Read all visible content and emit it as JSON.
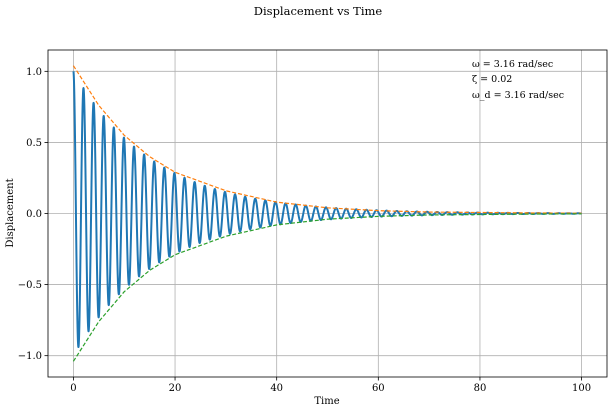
{
  "chart_data": {
    "type": "line",
    "title": "Displacement vs Time",
    "xlabel": "Time",
    "ylabel": "Displacement",
    "xlim": [
      -5,
      105
    ],
    "ylim": [
      -1.15,
      1.15
    ],
    "x_ticks": [
      0,
      20,
      40,
      60,
      80,
      100
    ],
    "x_tick_labels": [
      "0",
      "20",
      "40",
      "60",
      "80",
      "100"
    ],
    "y_ticks": [
      -1.0,
      -0.5,
      0.0,
      0.5,
      1.0
    ],
    "y_tick_labels": [
      "−1.0",
      "−0.5",
      "0.0",
      "0.5",
      "1.0"
    ],
    "grid": true,
    "annotations": [
      "ω = 3.16 rad/sec",
      "ζ = 0.02",
      "ω_d = 3.16 rad/sec"
    ],
    "series": [
      {
        "color": "#1f77b4",
        "line": "solid",
        "model": "damped_cosine",
        "params": {
          "amplitude": 1.0,
          "zeta": 0.02,
          "omega": 3.16,
          "omega_d": 3.16
        },
        "x": [
          0,
          2,
          5,
          10,
          15,
          20,
          30,
          40,
          50,
          60,
          70,
          80,
          90,
          100
        ],
        "envelope": [
          1.0,
          0.881,
          0.729,
          0.531,
          0.387,
          0.282,
          0.15,
          0.08,
          0.042,
          0.023,
          0.012,
          0.006,
          0.003,
          0.002
        ]
      },
      {
        "color": "#ff7f0e",
        "line": "dashed",
        "x": [
          0,
          5,
          10,
          15,
          20,
          30,
          40,
          50,
          60,
          70,
          80,
          90,
          100
        ],
        "y": [
          1.04,
          0.76,
          0.55,
          0.4,
          0.29,
          0.16,
          0.08,
          0.04,
          0.02,
          0.01,
          0.007,
          0.004,
          0.002
        ]
      },
      {
        "color": "#2ca02c",
        "line": "dashed",
        "x": [
          0,
          5,
          10,
          15,
          20,
          30,
          40,
          50,
          60,
          70,
          80,
          90,
          100
        ],
        "y": [
          -1.04,
          -0.76,
          -0.55,
          -0.4,
          -0.29,
          -0.16,
          -0.08,
          -0.04,
          -0.02,
          -0.01,
          -0.007,
          -0.004,
          -0.002
        ]
      }
    ]
  }
}
